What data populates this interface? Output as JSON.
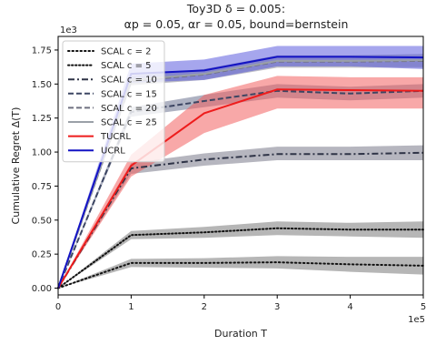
{
  "chart_data": {
    "type": "line",
    "title_line1": "Toy3D δ = 0.005:",
    "title_line2": "αp = 0.05, αr = 0.05, bound=bernstein",
    "xlabel": "Duration T",
    "ylabel": "Cumulative Regret Δ(T)",
    "x_multiplier": "1e5",
    "y_multiplier": "1e3",
    "xlim": [
      0,
      5
    ],
    "ylim": [
      -0.05,
      1.85
    ],
    "x_ticks": [
      0,
      1,
      2,
      3,
      4,
      5
    ],
    "x_tick_labels": [
      "0",
      "1",
      "2",
      "3",
      "4",
      "5"
    ],
    "y_ticks": [
      0.0,
      0.25,
      0.5,
      0.75,
      1.0,
      1.25,
      1.5,
      1.75
    ],
    "y_tick_labels": [
      "0.00",
      "0.25",
      "0.50",
      "0.75",
      "1.00",
      "1.25",
      "1.50",
      "1.75"
    ],
    "x": [
      0,
      1,
      2,
      3,
      4,
      5
    ],
    "series": [
      {
        "name": "SCAL c = 2",
        "color": "#111111",
        "dash": "dotted",
        "band": "#7a7a7a",
        "values": [
          0,
          0.185,
          0.185,
          0.19,
          0.175,
          0.165
        ],
        "lower": [
          0,
          0.155,
          0.15,
          0.145,
          0.12,
          0.1
        ],
        "upper": [
          0,
          0.215,
          0.22,
          0.235,
          0.23,
          0.23
        ]
      },
      {
        "name": "SCAL c = 5",
        "color": "#111111",
        "dash": "dotted-dense",
        "band": "#7a7a7a",
        "values": [
          0,
          0.39,
          0.41,
          0.44,
          0.43,
          0.43
        ],
        "lower": [
          0,
          0.36,
          0.37,
          0.39,
          0.38,
          0.37
        ],
        "upper": [
          0,
          0.42,
          0.45,
          0.49,
          0.48,
          0.49
        ]
      },
      {
        "name": "SCAL c = 10",
        "color": "#2f3447",
        "dash": "dashdot",
        "band": "#7a7a8a",
        "values": [
          0,
          0.88,
          0.945,
          0.985,
          0.985,
          0.995
        ],
        "lower": [
          0,
          0.84,
          0.9,
          0.94,
          0.94,
          0.94
        ],
        "upper": [
          0,
          0.92,
          0.99,
          1.04,
          1.04,
          1.05
        ]
      },
      {
        "name": "SCAL c = 15",
        "color": "#3d4663",
        "dash": "dashed",
        "band": "#6b7390",
        "values": [
          0,
          1.295,
          1.375,
          1.45,
          1.43,
          1.45
        ],
        "lower": [
          0,
          1.26,
          1.33,
          1.4,
          1.38,
          1.4
        ],
        "upper": [
          0,
          1.33,
          1.42,
          1.5,
          1.48,
          1.5
        ]
      },
      {
        "name": "SCAL c = 20",
        "color": "#6f7080",
        "dash": "dashed",
        "band": "#8a8a98",
        "values": [
          0,
          1.52,
          1.57,
          1.665,
          1.665,
          1.67
        ],
        "lower": [
          0,
          1.49,
          1.53,
          1.62,
          1.62,
          1.62
        ],
        "upper": [
          0,
          1.55,
          1.61,
          1.71,
          1.71,
          1.72
        ]
      },
      {
        "name": "SCAL c = 25",
        "color": "#9aa0a8",
        "dash": "solid",
        "band": "#a9adb4",
        "values": [
          0,
          1.53,
          1.575,
          1.67,
          1.67,
          1.675
        ],
        "lower": [
          0,
          1.5,
          1.54,
          1.63,
          1.63,
          1.63
        ],
        "upper": [
          0,
          1.56,
          1.61,
          1.71,
          1.71,
          1.72
        ]
      },
      {
        "name": "TUCRL",
        "color": "#ee1c1c",
        "dash": "solid",
        "band": "#f26060",
        "values": [
          0,
          0.9,
          1.285,
          1.46,
          1.455,
          1.45
        ],
        "lower": [
          0,
          0.82,
          1.14,
          1.32,
          1.32,
          1.32
        ],
        "upper": [
          0,
          0.98,
          1.42,
          1.56,
          1.55,
          1.55
        ]
      },
      {
        "name": "UCRL",
        "color": "#1313c4",
        "dash": "solid",
        "band": "#5d5ddf",
        "values": [
          0,
          1.575,
          1.6,
          1.7,
          1.7,
          1.695
        ],
        "lower": [
          0,
          1.51,
          1.53,
          1.63,
          1.63,
          1.61
        ],
        "upper": [
          0,
          1.65,
          1.68,
          1.78,
          1.78,
          1.78
        ]
      }
    ],
    "legend_position": "upper-left",
    "grid": false
  }
}
